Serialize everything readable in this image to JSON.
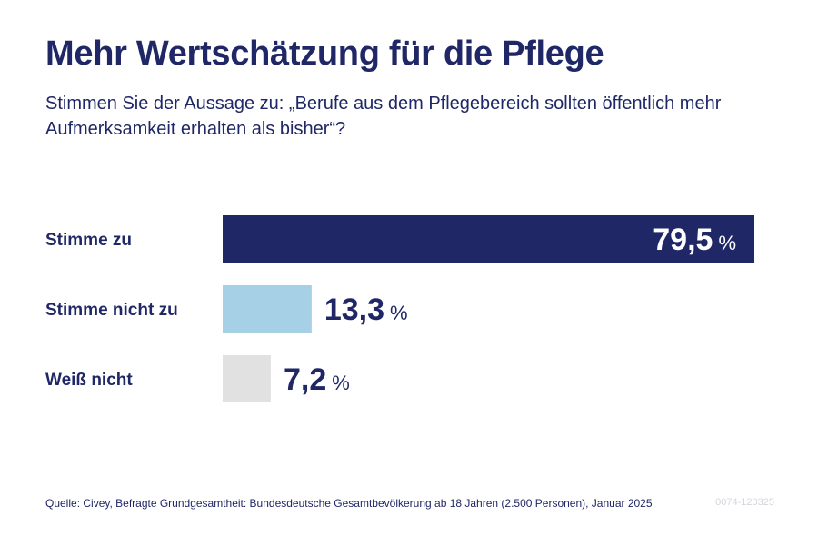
{
  "title": "Mehr Wertschätzung für die Pflege",
  "subtitle": "Stimmen Sie der Aussage zu: „Berufe aus dem Pflegebereich sollten öffentlich mehr Aufmerksamkeit erhalten als bisher“?",
  "source": "Quelle: Civey, Befragte Grundgesamtheit: Bundesdeutsche Gesamtbevölkerung ab 18 Jahren (2.500 Personen), Januar 2025",
  "code": "0074-120325",
  "colors": {
    "navy": "#1f2766",
    "light_blue": "#a6d0e6",
    "light_gray": "#e1e1e1",
    "value_inside": "#ffffff"
  },
  "chart_data": {
    "type": "bar",
    "orientation": "horizontal",
    "categories": [
      "Stimme zu",
      "Stimme nicht zu",
      "Weiß nicht"
    ],
    "values": [
      79.5,
      13.3,
      7.2
    ],
    "value_labels": [
      "79,5",
      "13,3",
      "7,2"
    ],
    "unit": "%",
    "bar_colors": [
      "#1f2766",
      "#a6d0e6",
      "#e1e1e1"
    ],
    "xlim": [
      0,
      79.5
    ],
    "grid": false,
    "legend": "none",
    "xlabel": "",
    "ylabel": ""
  }
}
